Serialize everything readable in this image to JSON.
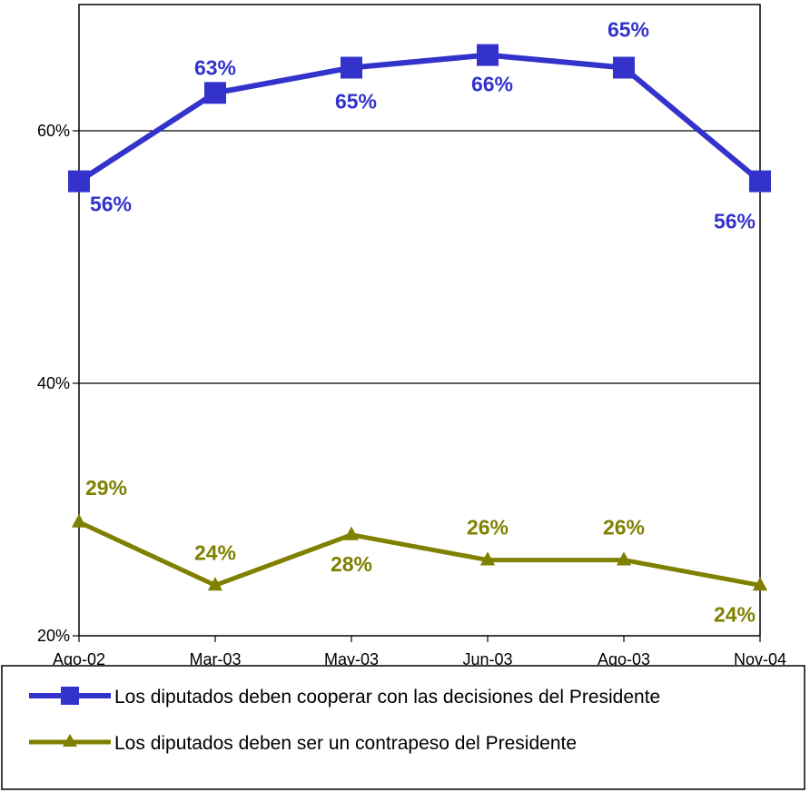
{
  "chart_data": {
    "type": "line",
    "categories": [
      "Ago-02",
      "Mar-03",
      "May-03",
      "Jun-03",
      "Ago-03",
      "Nov-04"
    ],
    "y_ticks": [
      "20%",
      "40%",
      "60%"
    ],
    "ylim": [
      20,
      70
    ],
    "grid": true,
    "legend_position": "bottom",
    "series": [
      {
        "name": "Los diputados deben cooperar con las decisiones del Presidente",
        "values": [
          56,
          63,
          65,
          66,
          65,
          56
        ],
        "labels": [
          "56%",
          "63%",
          "65%",
          "66%",
          "65%",
          "56%"
        ],
        "color": "#3333cc",
        "marker": "square"
      },
      {
        "name": "Los diputados deben ser un contrapeso del Presidente",
        "values": [
          29,
          24,
          28,
          26,
          26,
          24
        ],
        "labels": [
          "29%",
          "24%",
          "28%",
          "26%",
          "26%",
          "24%"
        ],
        "color": "#808000",
        "marker": "triangle"
      }
    ]
  }
}
